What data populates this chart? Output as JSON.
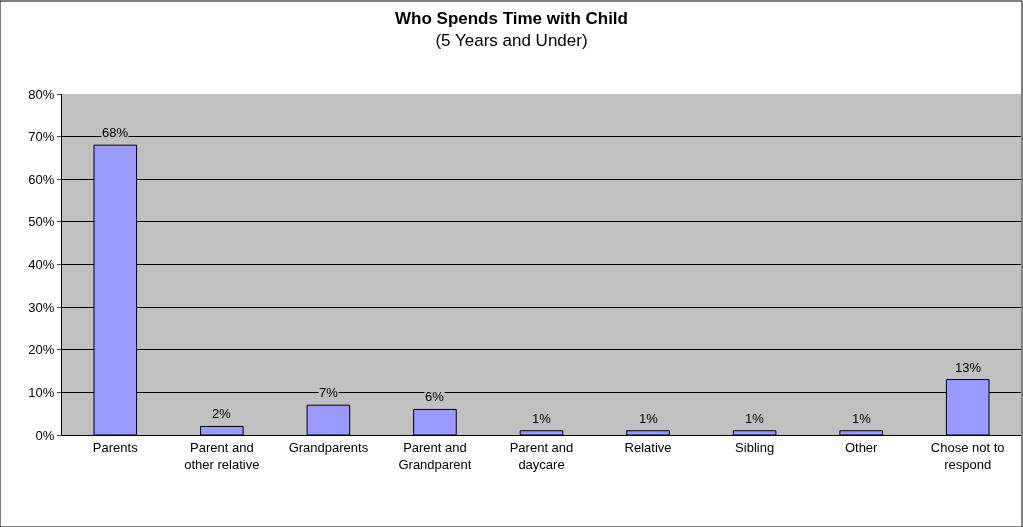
{
  "chart_data": {
    "type": "bar",
    "title": "Who Spends Time with Child",
    "subtitle": "(5 Years and Under)",
    "categories": [
      "Parents",
      "Parent and other relative",
      "Grandparents",
      "Parent and Grandparent",
      "Parent and daycare",
      "Relative",
      "Sibling",
      "Other",
      "Chose not to respond"
    ],
    "values": [
      68,
      2,
      7,
      6,
      1,
      1,
      1,
      1,
      13
    ],
    "value_labels": [
      "68%",
      "2%",
      "7%",
      "6%",
      "1%",
      "1%",
      "1%",
      "1%",
      "13%"
    ],
    "color": "#9999ff",
    "ylim": [
      0,
      80
    ],
    "yticks": [
      {
        "value": 0,
        "label": "0%"
      },
      {
        "value": 10,
        "label": "10%"
      },
      {
        "value": 20,
        "label": "20%"
      },
      {
        "value": 30,
        "label": "30%"
      },
      {
        "value": 40,
        "label": "40%"
      },
      {
        "value": 50,
        "label": "50%"
      },
      {
        "value": 60,
        "label": "60%"
      },
      {
        "value": 70,
        "label": "70%"
      },
      {
        "value": 80,
        "label": "80%"
      }
    ],
    "grid": "y"
  }
}
